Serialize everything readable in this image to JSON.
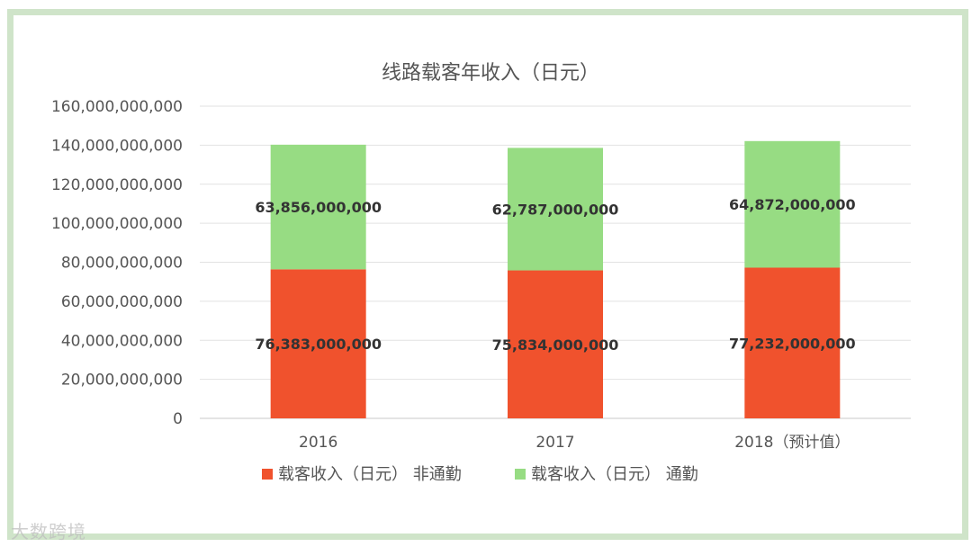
{
  "chart_data": {
    "type": "bar",
    "stacked": true,
    "title": "线路载客年收入（日元）",
    "categories": [
      "2016",
      "2017",
      "2018（预计值）"
    ],
    "series": [
      {
        "name": "载客收入（日元） 非通勤",
        "values": [
          76383000000,
          75834000000,
          77232000000
        ],
        "labels": [
          "76,383,000,000",
          "75,834,000,000",
          "77,232,000,000"
        ],
        "color": "#f0522d"
      },
      {
        "name": "载客收入（日元） 通勤",
        "values": [
          63856000000,
          62787000000,
          64872000000
        ],
        "labels": [
          "63,856,000,000",
          "62,787,000,000",
          "64,872,000,000"
        ],
        "color": "#97dc83"
      }
    ],
    "ylim": [
      0,
      160000000000
    ],
    "yticks": [
      0,
      20000000000,
      40000000000,
      60000000000,
      80000000000,
      100000000000,
      120000000000,
      140000000000,
      160000000000
    ],
    "ytick_labels": [
      "0",
      "20,000,000,000",
      "40,000,000,000",
      "60,000,000,000",
      "80,000,000,000",
      "100,000,000,000",
      "120,000,000,000",
      "140,000,000,000",
      "160,000,000,000"
    ],
    "grid": true,
    "legend_position": "bottom"
  },
  "watermark": "大数跨境"
}
